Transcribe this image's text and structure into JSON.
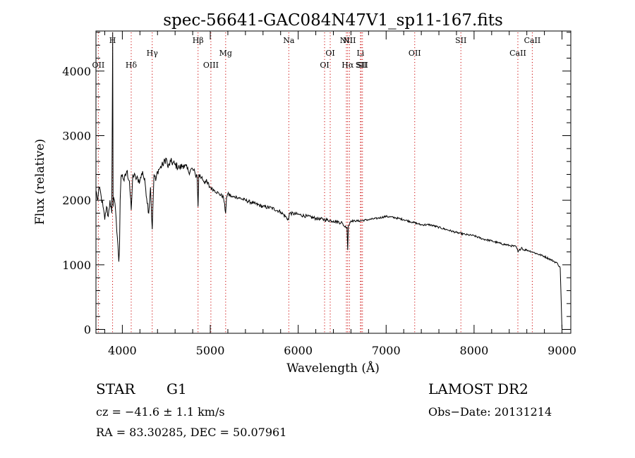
{
  "chart_data": {
    "type": "line",
    "title": "spec-56641-GAC084N47V1_sp11-167.fits",
    "xlabel": "Wavelength (Å)",
    "ylabel": "Flux (relative)",
    "xlim": [
      3700,
      9100
    ],
    "ylim": [
      -60,
      4620
    ],
    "xticks": [
      4000,
      5000,
      6000,
      7000,
      8000,
      9000
    ],
    "xtick_labels": [
      "4000",
      "5000",
      "6000",
      "7000",
      "8000",
      "9000"
    ],
    "yticks": [
      0,
      1000,
      2000,
      3000,
      4000
    ],
    "ytick_labels": [
      "0",
      "1000",
      "2000",
      "3000",
      "4000"
    ],
    "grid": false,
    "series": [
      {
        "line_color": "#000000",
        "x": [
          3700,
          3720,
          3740,
          3760,
          3780,
          3800,
          3820,
          3840,
          3860,
          3880,
          3890,
          3895,
          3900,
          3910,
          3930,
          3950,
          3960,
          3968,
          3975,
          3985,
          4000,
          4020,
          4050,
          4080,
          4101,
          4120,
          4150,
          4200,
          4230,
          4260,
          4300,
          4320,
          4340,
          4360,
          4380,
          4400,
          4430,
          4460,
          4500,
          4520,
          4550,
          4600,
          4650,
          4700,
          4750,
          4800,
          4830,
          4850,
          4861,
          4870,
          4900,
          4950,
          5000,
          5050,
          5100,
          5150,
          5175,
          5185,
          5200,
          5250,
          5300,
          5400,
          5500,
          5600,
          5700,
          5800,
          5890,
          5900,
          6000,
          6100,
          6200,
          6300,
          6400,
          6500,
          6520,
          6555,
          6563,
          6570,
          6600,
          6700,
          6800,
          6900,
          7000,
          7100,
          7200,
          7300,
          7400,
          7500,
          7600,
          7700,
          7800,
          7900,
          8000,
          8100,
          8200,
          8300,
          8400,
          8480,
          8500,
          8542,
          8560,
          8600,
          8662,
          8700,
          8800,
          8900,
          8950,
          8980,
          9000
        ],
        "y": [
          2150,
          2000,
          2200,
          2050,
          1900,
          1700,
          1900,
          1750,
          2000,
          1800,
          4600,
          1900,
          2050,
          2000,
          1700,
          1300,
          1050,
          1250,
          2000,
          2350,
          2400,
          2300,
          2450,
          2300,
          1850,
          2400,
          2350,
          2300,
          2450,
          2250,
          1800,
          2200,
          1550,
          2400,
          2300,
          2450,
          2500,
          2550,
          2650,
          2500,
          2600,
          2550,
          2500,
          2550,
          2450,
          2480,
          2400,
          2380,
          1900,
          2400,
          2350,
          2280,
          2200,
          2150,
          2100,
          2050,
          1800,
          2050,
          2100,
          2050,
          2050,
          2000,
          1950,
          1900,
          1880,
          1820,
          1700,
          1800,
          1780,
          1750,
          1720,
          1700,
          1680,
          1650,
          1600,
          1580,
          1230,
          1600,
          1680,
          1680,
          1700,
          1720,
          1750,
          1730,
          1700,
          1660,
          1620,
          1620,
          1580,
          1540,
          1500,
          1470,
          1450,
          1400,
          1370,
          1330,
          1300,
          1280,
          1200,
          1270,
          1230,
          1230,
          1200,
          1180,
          1130,
          1060,
          1020,
          950,
          0
        ]
      }
    ],
    "lines": [
      {
        "label": "OII",
        "x": 3727,
        "row": 2
      },
      {
        "label": "H",
        "x": 3889,
        "row": 0
      },
      {
        "label": "Hδ",
        "x": 4101,
        "row": 2
      },
      {
        "label": "Hγ",
        "x": 4340,
        "row": 1
      },
      {
        "label": "Hβ",
        "x": 4861,
        "row": 0
      },
      {
        "label": "OIII",
        "x": 5007,
        "row": 2
      },
      {
        "label": "Mg",
        "x": 5175,
        "row": 1
      },
      {
        "label": "Na",
        "x": 5893,
        "row": 0
      },
      {
        "label": "OI",
        "x": 6300,
        "row": 2
      },
      {
        "label": "OI",
        "x": 6364,
        "row": 1
      },
      {
        "label": "NII",
        "x": 6548,
        "row": 0
      },
      {
        "label": "Hα",
        "x": 6563,
        "row": 2
      },
      {
        "label": "NII",
        "x": 6583,
        "row": 0
      },
      {
        "label": "Li",
        "x": 6708,
        "row": 1
      },
      {
        "label": "SII",
        "x": 6716,
        "row": 2
      },
      {
        "label": "SII",
        "x": 6731,
        "row": 2
      },
      {
        "label": "OII",
        "x": 7325,
        "row": 1
      },
      {
        "label": "SII",
        "x": 7850,
        "row": 0
      },
      {
        "label": "CaII",
        "x": 8498,
        "row": 1
      },
      {
        "label": "CaII",
        "x": 8662,
        "row": 0
      }
    ],
    "line_marker_color": "#cc0000"
  },
  "info": {
    "object_type": "STAR",
    "subclass": "G1",
    "survey": "LAMOST DR2",
    "cz": "cz = −41.6 ± 1.1 km/s",
    "obs_date": "Obs−Date: 20131214",
    "coords": "RA =  83.30285, DEC =  50.07961"
  }
}
